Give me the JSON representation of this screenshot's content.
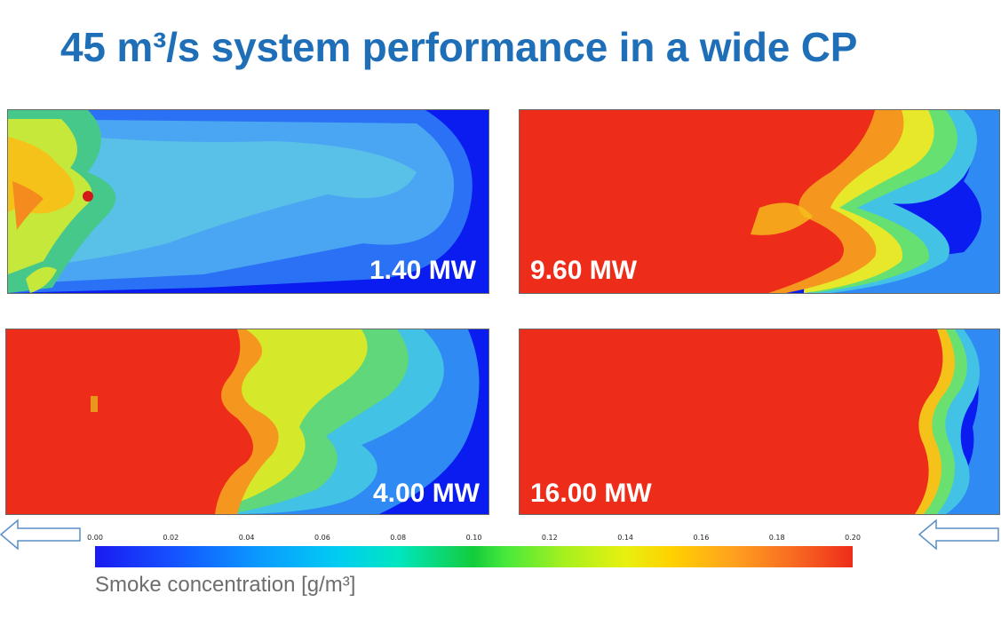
{
  "slide": {
    "title": "45 m³/s system performance in a wide CP"
  },
  "panels": [
    {
      "label": "1.40 MW",
      "smoke_extent": "low"
    },
    {
      "label": "9.60 MW",
      "smoke_extent": "high"
    },
    {
      "label": "4.00 MW",
      "smoke_extent": "medium"
    },
    {
      "label": "16.00 MW",
      "smoke_extent": "very-high"
    }
  ],
  "colorbar": {
    "ticks": [
      "0.00",
      "0.02",
      "0.04",
      "0.06",
      "0.08",
      "0.10",
      "0.12",
      "0.14",
      "0.16",
      "0.18",
      "0.20"
    ],
    "label": "Smoke concentration [g/m³]",
    "range": [
      0.0,
      0.2
    ],
    "colors": {
      "low": "#1a1af0",
      "mid": "#13cc3a",
      "high": "#ee2c1a"
    }
  },
  "flow_arrows": {
    "left": "arrow-left-icon",
    "right": "arrow-left-icon"
  },
  "colors": {
    "title": "#1f6fb8",
    "arrow_stroke": "#5b8fc7"
  }
}
